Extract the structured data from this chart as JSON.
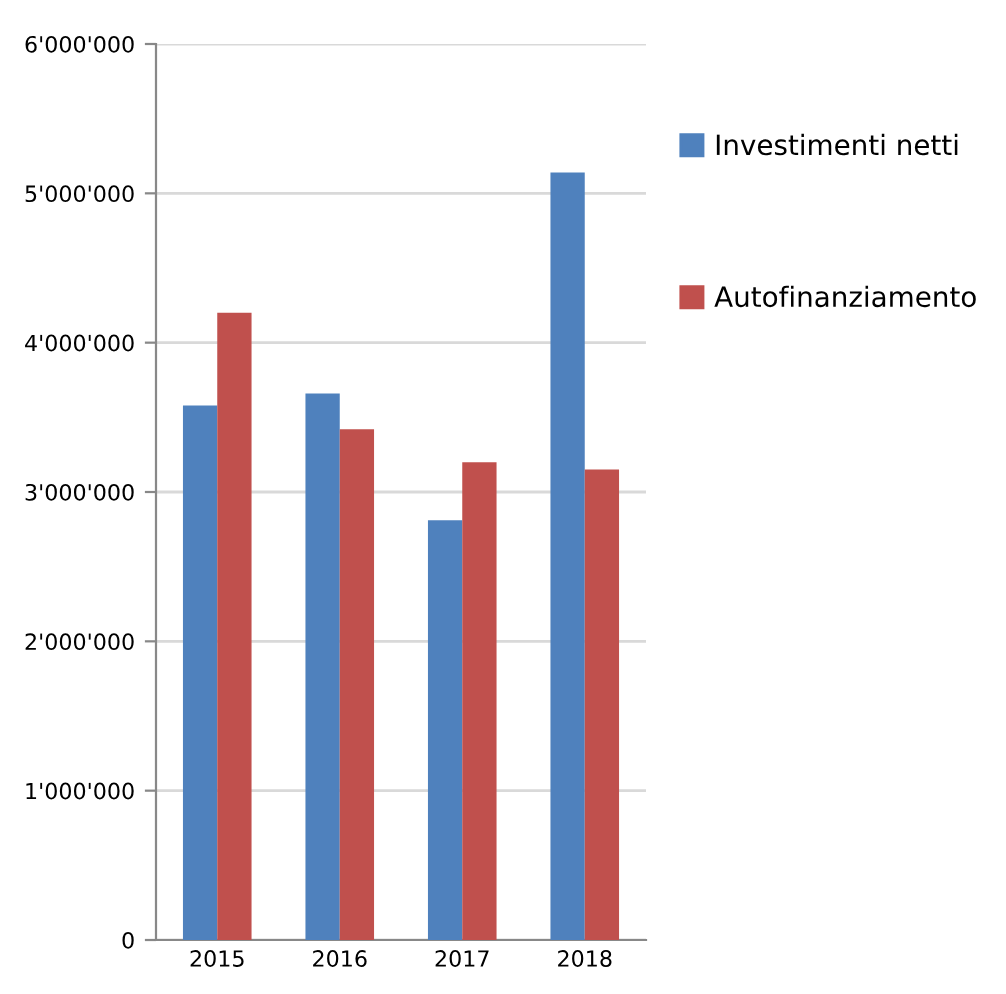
{
  "chart_data": {
    "type": "bar",
    "categories": [
      "2015",
      "2016",
      "2017",
      "2018"
    ],
    "series": [
      {
        "name": "Investimenti netti",
        "color": "#4f81bd",
        "values": [
          3580000,
          3660000,
          2810000,
          5140000
        ]
      },
      {
        "name": "Autofinanziamento",
        "color": "#c0504d",
        "values": [
          4200000,
          3420000,
          3200000,
          3150000
        ]
      }
    ],
    "ylim": [
      0,
      6000000
    ],
    "yticks": [
      0,
      {
        "value": 1000000,
        "label": "1'000'000"
      },
      {
        "value": 2000000,
        "label": "2'000'000"
      },
      {
        "value": 3000000,
        "label": "3'000'000"
      },
      {
        "value": 4000000,
        "label": "4'000'000"
      },
      {
        "value": 5000000,
        "label": "5'000'000"
      },
      {
        "value": 6000000,
        "label": "6'000'000"
      }
    ],
    "grid": "y",
    "legend": "right"
  }
}
